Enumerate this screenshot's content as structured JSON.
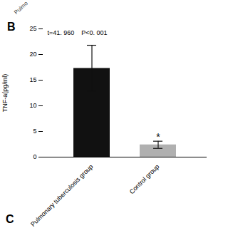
{
  "chart_data": {
    "type": "bar",
    "categories": [
      "Pulmonary tuberculosis group",
      "Control group"
    ],
    "values": [
      17.3,
      2.4
    ],
    "errors": [
      4.5,
      0.7
    ],
    "colors": [
      "#111111",
      "#b0b0b0"
    ],
    "ylabel": "TNF-a(pg/ml)",
    "ylim": [
      0,
      25
    ],
    "yticks": [
      0,
      5,
      10,
      15,
      20,
      25
    ],
    "grid": false,
    "annotations": [
      {
        "text": "*",
        "x": "Control group",
        "y": 3.2
      },
      {
        "text": "t=41. 960    P<0. 001"
      }
    ],
    "panel_label": "B",
    "bottom_label": "C",
    "top_text": "Pulmo"
  }
}
